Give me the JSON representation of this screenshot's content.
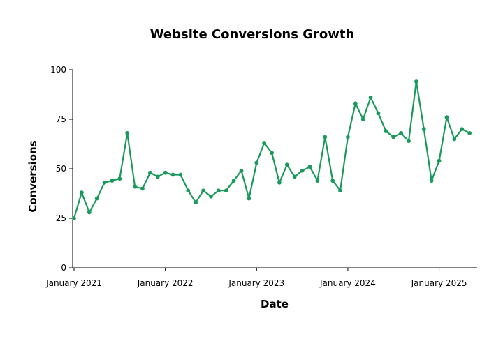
{
  "chart_data": {
    "type": "line",
    "title": "Website Conversions Growth",
    "xlabel": "Date",
    "ylabel": "Conversions",
    "ylim": [
      0,
      100
    ],
    "yticks": [
      0,
      25,
      50,
      75,
      100
    ],
    "xlim": [
      "2021-01",
      "2025-06"
    ],
    "xticks": [
      {
        "date": "2021-01",
        "label": "January 2021"
      },
      {
        "date": "2022-01",
        "label": "January 2022"
      },
      {
        "date": "2023-01",
        "label": "January 2023"
      },
      {
        "date": "2024-01",
        "label": "January 2024"
      },
      {
        "date": "2025-01",
        "label": "January 2025"
      }
    ],
    "grid": false,
    "series_color": "#1a9a5a",
    "series": [
      {
        "x": [
          "2021-01",
          "2021-02",
          "2021-03",
          "2021-04",
          "2021-05",
          "2021-06",
          "2021-07",
          "2021-08",
          "2021-09",
          "2021-10",
          "2021-11",
          "2021-12",
          "2022-01",
          "2022-02",
          "2022-03",
          "2022-04",
          "2022-05",
          "2022-06",
          "2022-07",
          "2022-08",
          "2022-09",
          "2022-10",
          "2022-11",
          "2022-12",
          "2023-01",
          "2023-02",
          "2023-03",
          "2023-04",
          "2023-05",
          "2023-06",
          "2023-07",
          "2023-08",
          "2023-09",
          "2023-10",
          "2023-11",
          "2023-12",
          "2024-01",
          "2024-02",
          "2024-03",
          "2024-04",
          "2024-05",
          "2024-06",
          "2024-07",
          "2024-08",
          "2024-09",
          "2024-10",
          "2024-11",
          "2024-12",
          "2025-01",
          "2025-02",
          "2025-03",
          "2025-04",
          "2025-05"
        ],
        "values": [
          25,
          38,
          28,
          35,
          43,
          44,
          45,
          68,
          41,
          40,
          48,
          46,
          48,
          47,
          47,
          39,
          33,
          39,
          36,
          39,
          39,
          44,
          49,
          35,
          53,
          63,
          58,
          43,
          52,
          46,
          49,
          51,
          44,
          66,
          44,
          39,
          66,
          83,
          75,
          86,
          78,
          69,
          66,
          68,
          64,
          94,
          70,
          44,
          54,
          76,
          65,
          70,
          68
        ]
      }
    ]
  }
}
